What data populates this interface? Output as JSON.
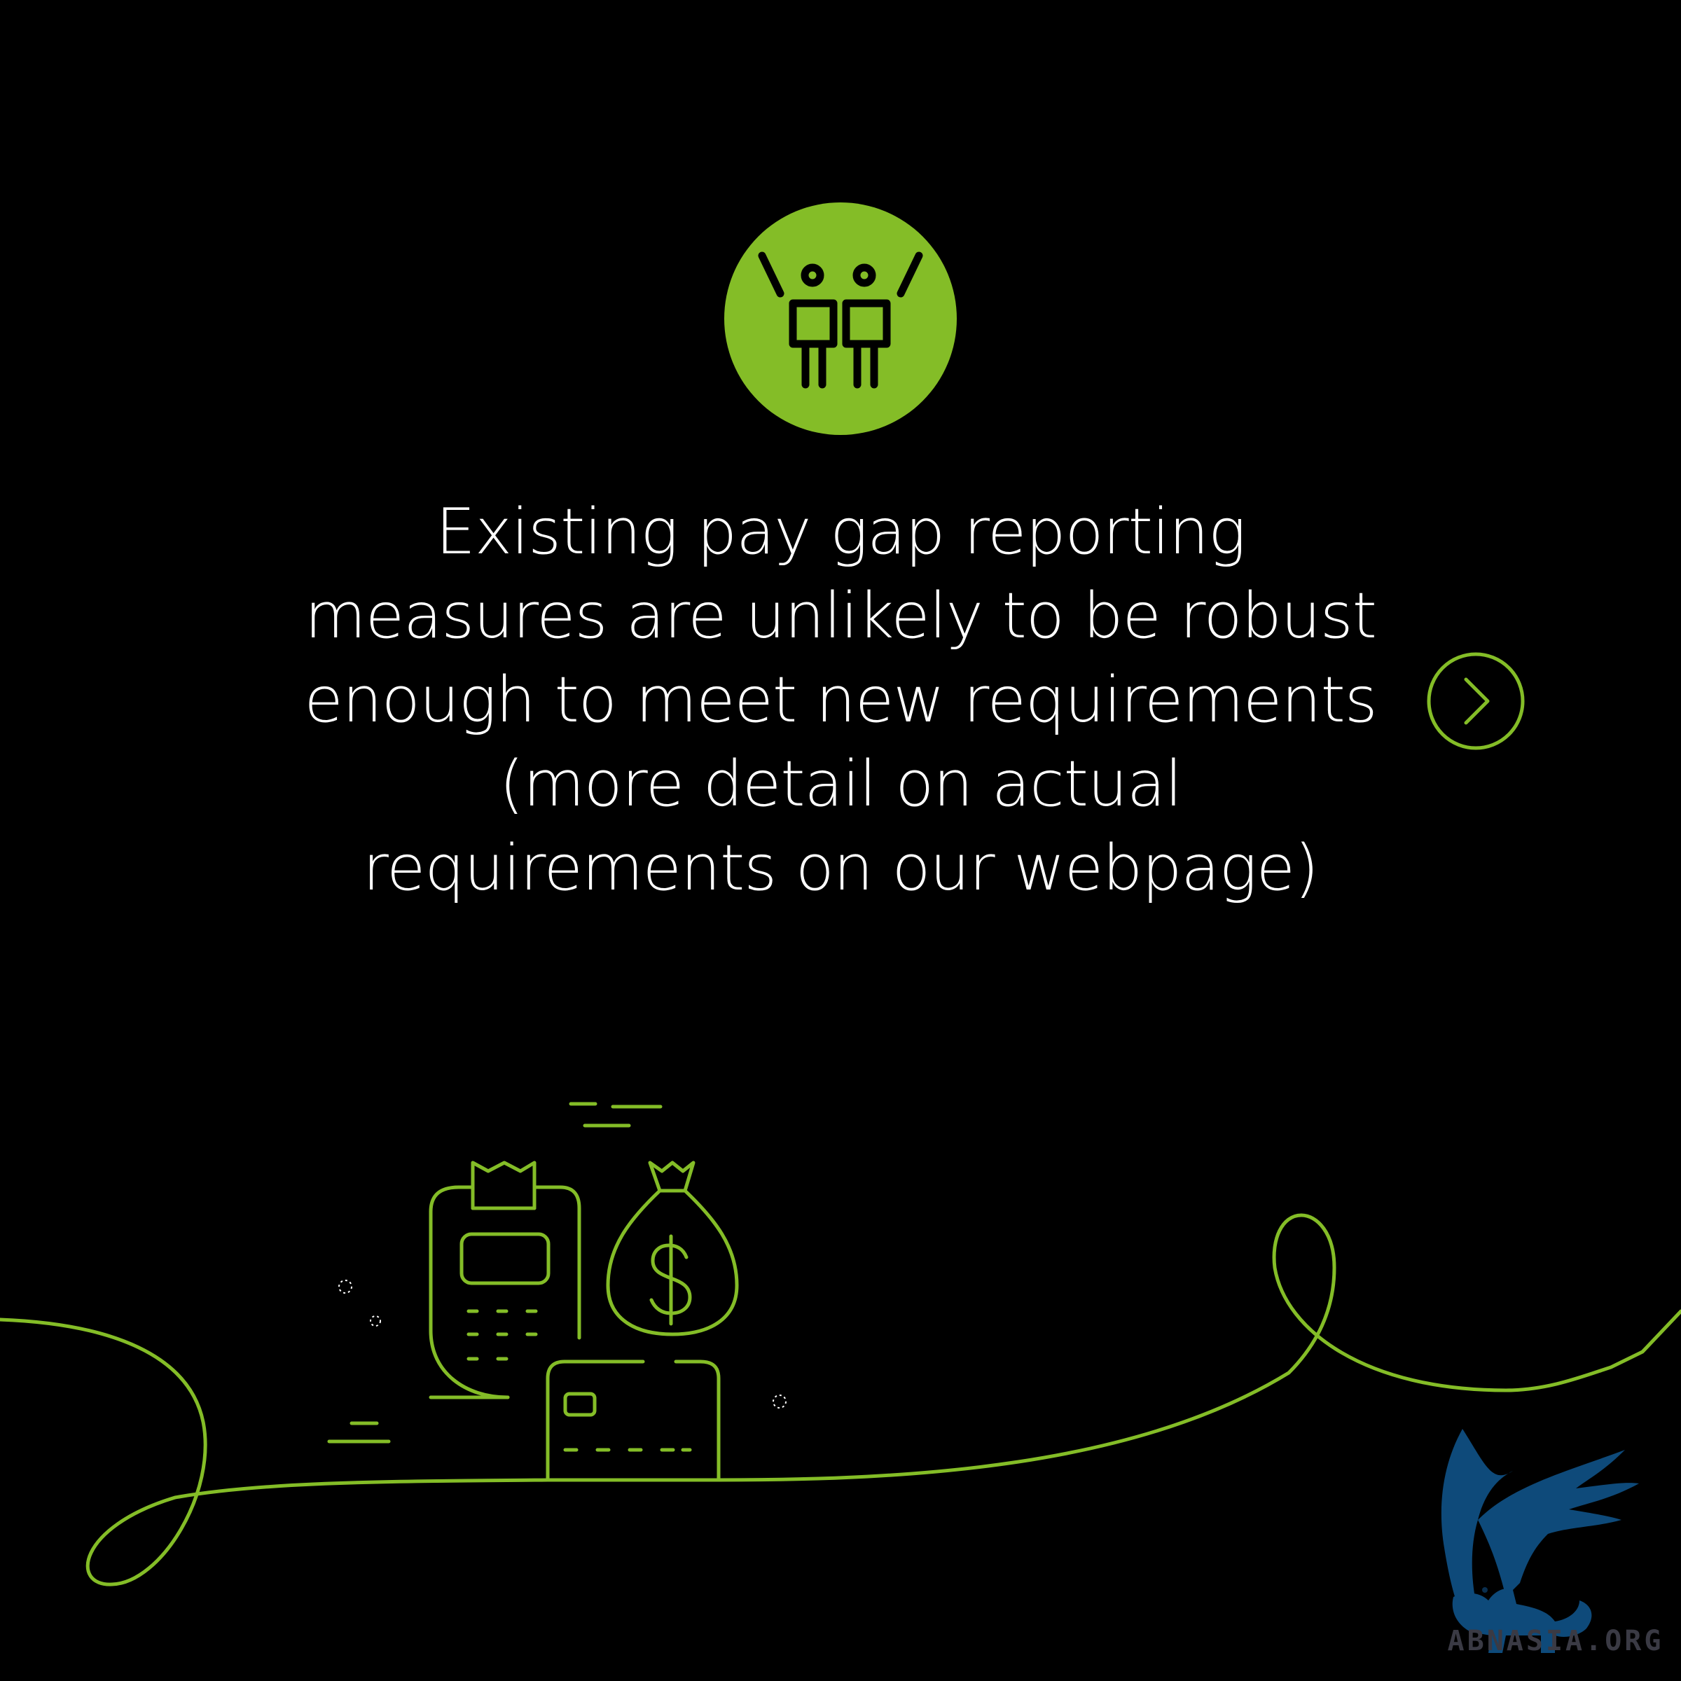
{
  "message": {
    "lines": [
      "Existing pay gap reporting",
      "measures are unlikely to be robust",
      "enough to meet new requirements",
      "(more detail on actual",
      "requirements on our webpage)"
    ]
  },
  "icons": {
    "badge": "two-people-celebrating-icon",
    "next": "chevron-right-icon",
    "illustration": [
      "payment-terminal-icon",
      "money-bag-icon",
      "credit-card-icon",
      "dollar-sign-icon"
    ]
  },
  "colors": {
    "background": "#000000",
    "accent_green": "#84bd27",
    "text": "#ffffff",
    "logo_blue": "#0e4a7a"
  },
  "watermark": {
    "text": "ABNASIA.ORG"
  }
}
